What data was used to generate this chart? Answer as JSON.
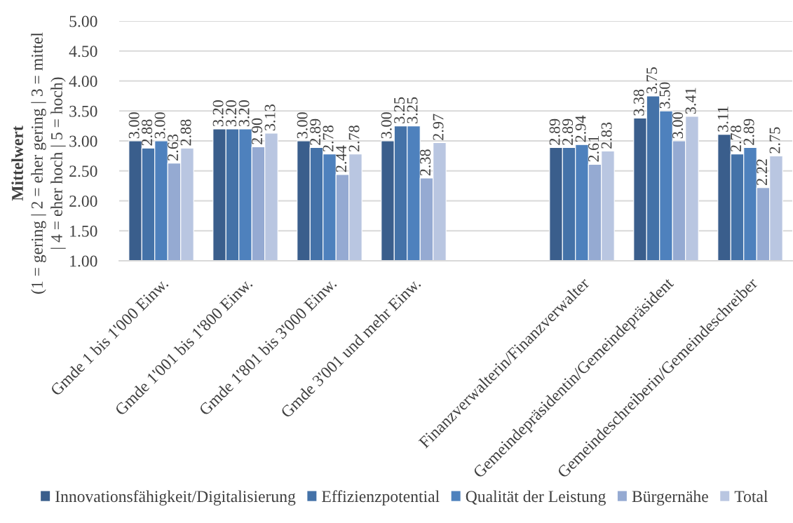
{
  "chart_data": {
    "type": "bar",
    "ylabel": "Mittelwert\n(1 = gering | 2 = eher gering | 3 = mittel\n| 4 = eher hoch | 5 = hoch)",
    "categories": [
      "Gmde 1 bis 1'000 Einw.",
      "Gmde 1'001 bis 1'800 Einw.",
      "Gmde 1'801 bis 3'000 Einw.",
      "Gmde 3'001 und mehr Einw.",
      null,
      "Finanzverwalterin/Finanzverwalter",
      "Gemeindepräsidentin/Gemeindepräsident",
      "Gemeindeschreiberin/Gemeindeschreiber"
    ],
    "series": [
      {
        "name": "Innovationsfähigkeit/Digitalisierung",
        "color": "#3a5e8c",
        "values": [
          3.0,
          3.2,
          3.0,
          3.0,
          null,
          2.89,
          3.38,
          3.11
        ],
        "value_labels": [
          "3.00",
          "3.20",
          "3.00",
          "3.00",
          null,
          "2.89",
          "3.38",
          "3.11"
        ]
      },
      {
        "name": "Effizienzpotential",
        "color": "#4472a8",
        "values": [
          2.88,
          3.2,
          2.89,
          3.25,
          null,
          2.89,
          3.75,
          2.78
        ],
        "value_labels": [
          "2.88",
          "3.20",
          "2.89",
          "3.25",
          null,
          "2.89",
          "3.75",
          "2.78"
        ]
      },
      {
        "name": "Qualität der Leistung",
        "color": "#4e81bd",
        "values": [
          3.0,
          3.2,
          2.78,
          3.25,
          null,
          2.94,
          3.5,
          2.89
        ],
        "value_labels": [
          "3.00",
          "3.20",
          "2.78",
          "3.25",
          null,
          "2.94",
          "3.50",
          "2.89"
        ]
      },
      {
        "name": "Bürgernähe",
        "color": "#95aad2",
        "values": [
          2.63,
          2.9,
          2.44,
          2.38,
          null,
          2.61,
          3.0,
          2.22
        ],
        "value_labels": [
          "2.63",
          "2.90",
          "2.44",
          "2.38",
          null,
          "2.61",
          "3.00",
          "2.22"
        ]
      },
      {
        "name": "Total",
        "color": "#b9c6e1",
        "values": [
          2.88,
          3.13,
          2.78,
          2.97,
          null,
          2.83,
          3.41,
          2.75
        ],
        "value_labels": [
          "2.88",
          "3.13",
          "2.78",
          "2.97",
          null,
          "2.83",
          "3.41",
          "2.75"
        ]
      }
    ],
    "ylim": [
      1,
      5
    ],
    "yticks": [
      {
        "value": 1,
        "label": "1.00"
      },
      {
        "value": 1.5,
        "label": "1.50"
      },
      {
        "value": 2,
        "label": "2.00"
      },
      {
        "value": 2.5,
        "label": "2.50"
      },
      {
        "value": 3,
        "label": "3.00"
      },
      {
        "value": 3.5,
        "label": "3.50"
      },
      {
        "value": 4,
        "label": "4.00"
      },
      {
        "value": 4.5,
        "label": "4.50"
      },
      {
        "value": 5,
        "label": "5.00"
      }
    ],
    "grid": "y",
    "legend": "bottom"
  }
}
